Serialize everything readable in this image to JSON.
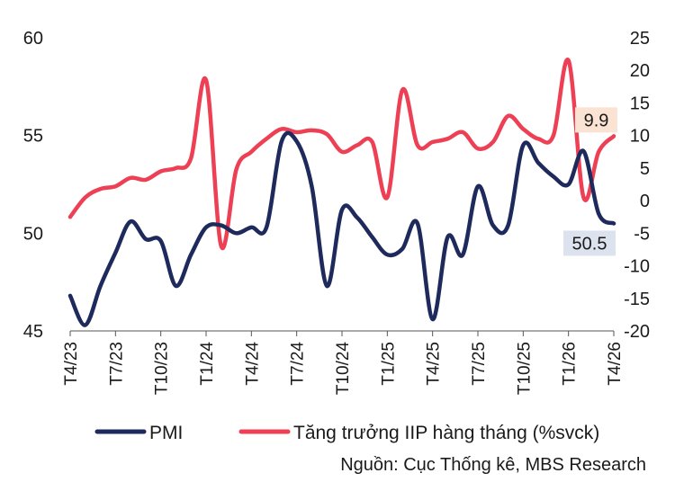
{
  "chart_data": {
    "type": "line",
    "x": [
      "T4/23",
      "T5/23",
      "T6/23",
      "T7/23",
      "T8/23",
      "T9/23",
      "T10/23",
      "T11/23",
      "T12/23",
      "T1/24",
      "T2/24",
      "T3/24",
      "T4/24",
      "T5/24",
      "T6/24",
      "T7/24",
      "T8/24",
      "T9/24",
      "T10/24",
      "T11/24",
      "T12/24",
      "T1/25",
      "T2/25",
      "T3/25",
      "T4/25",
      "T5/25",
      "T6/25",
      "T7/25",
      "T8/25",
      "T9/25",
      "T10/25",
      "T11/25",
      "T12/25",
      "T1/26",
      "T2/26",
      "T3/26",
      "T4/26"
    ],
    "x_tick_labels": [
      "T4/23",
      "T7/23",
      "T10/23",
      "T1/24",
      "T4/24",
      "T7/24",
      "T10/24",
      "T1/25",
      "T4/25",
      "T7/25",
      "T10/25",
      "T1/26",
      "T4/26"
    ],
    "series": [
      {
        "name": "PMI",
        "axis": "left",
        "color": "#1f2a5c",
        "values": [
          46.8,
          45.3,
          47.3,
          49.0,
          50.6,
          49.7,
          49.6,
          47.3,
          48.9,
          50.3,
          50.4,
          50.0,
          50.3,
          50.3,
          54.7,
          54.7,
          52.4,
          47.3,
          51.2,
          50.8,
          49.8,
          48.9,
          49.2,
          50.5,
          45.6,
          49.8,
          48.9,
          52.4,
          50.4,
          50.4,
          54.5,
          53.6,
          52.9,
          52.5,
          54.2,
          51.0,
          50.5
        ]
      },
      {
        "name": "Tăng trưởng IIP hàng tháng (%svck)",
        "axis": "right",
        "color": "#ee4055",
        "values": [
          -2.5,
          0.5,
          1.8,
          2.2,
          3.5,
          3.2,
          4.5,
          5.0,
          6.5,
          18.5,
          -7.0,
          4.8,
          7.5,
          9.5,
          11.0,
          10.5,
          10.8,
          10.2,
          7.5,
          8.5,
          9.0,
          0.5,
          17.0,
          8.5,
          9.0,
          9.5,
          10.5,
          8.0,
          9.0,
          13.0,
          11.0,
          9.5,
          10.0,
          21.5,
          0.5,
          7.5,
          9.9
        ]
      }
    ],
    "left_axis": {
      "min": 45,
      "max": 60,
      "ticks": [
        "45",
        "50",
        "55",
        "60"
      ]
    },
    "right_axis": {
      "min": -20,
      "max": 25,
      "ticks": [
        "-20",
        "-15",
        "-10",
        "-5",
        "0",
        "5",
        "10",
        "15",
        "20",
        "25"
      ]
    },
    "callouts": [
      {
        "series": "PMI",
        "text": "50.5",
        "bg": "#dde3ee"
      },
      {
        "series": "Tăng trưởng IIP hàng tháng (%svck)",
        "text": "9.9",
        "bg": "#fbe3d4"
      }
    ],
    "legend": {
      "position": "bottom",
      "items": [
        "PMI",
        "Tăng trưởng IIP hàng tháng (%svck)"
      ]
    },
    "grid": false
  },
  "source": "Nguồn: Cục Thống kê, MBS Research"
}
